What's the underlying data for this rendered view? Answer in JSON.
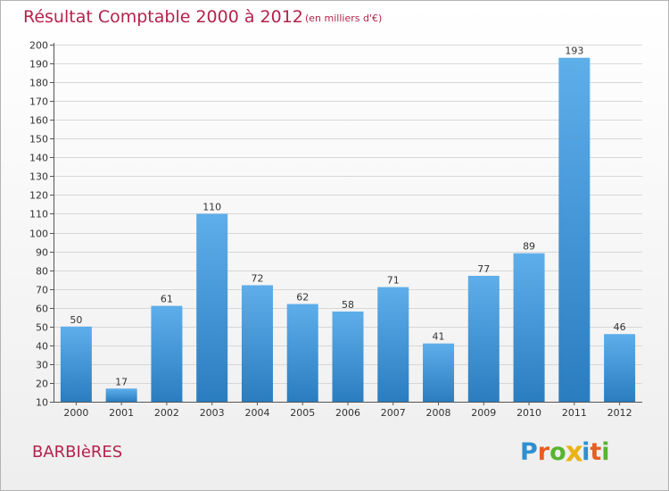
{
  "title": "Résultat Comptable 2000 à 2012",
  "subtitle": "(en milliers d'€)",
  "commune": "BARBIèRES",
  "logo": {
    "letters": [
      "P",
      "r",
      "o",
      "x",
      "i",
      "t",
      "i"
    ],
    "colors": [
      "#2f8fd0",
      "#e65f22",
      "#58b430",
      "#e8b317",
      "#2f8fd0",
      "#e65f22",
      "#58b430"
    ]
  },
  "colors": {
    "title": "#b5224c",
    "bar_top": "#5eaeea",
    "bar_bottom": "#2a7dc0",
    "grid": "#d7d7d7",
    "axis": "#555555"
  },
  "chart_data": {
    "type": "bar",
    "categories": [
      "2000",
      "2001",
      "2002",
      "2003",
      "2004",
      "2005",
      "2006",
      "2007",
      "2008",
      "2009",
      "2010",
      "2011",
      "2012"
    ],
    "values": [
      50,
      17,
      61,
      110,
      72,
      62,
      58,
      71,
      41,
      77,
      89,
      193,
      46
    ],
    "ylim": [
      10,
      200
    ],
    "yticks": [
      10,
      20,
      30,
      40,
      50,
      60,
      70,
      80,
      90,
      100,
      110,
      120,
      130,
      140,
      150,
      160,
      170,
      180,
      190,
      200
    ],
    "grid": true,
    "data_labels": true
  }
}
